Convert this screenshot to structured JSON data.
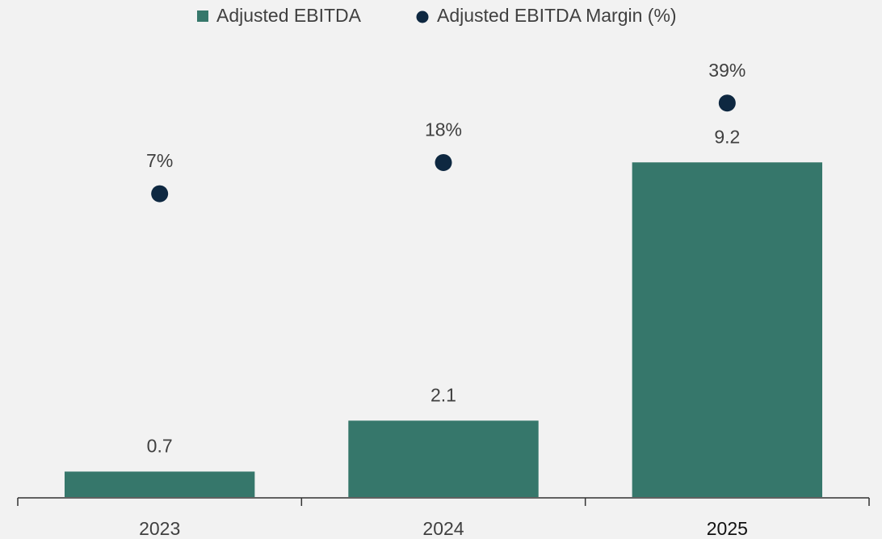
{
  "chart_data": {
    "type": "bar_dot",
    "categories": [
      "2023",
      "2024",
      "2025"
    ],
    "series": [
      {
        "name": "Adjusted EBITDA",
        "color": "#36776b",
        "values": [
          0.7,
          2.1,
          9.2
        ]
      },
      {
        "name": "Adjusted EBITDA Margin (%)",
        "color": "#0e2841",
        "axis": "y2",
        "values": [
          7,
          18,
          39
        ],
        "value_labels": [
          "7%",
          "18%",
          "39%"
        ]
      }
    ],
    "ylim": [
      0,
      12
    ],
    "y2lim": [
      -100,
      54
    ],
    "legend": "top"
  }
}
